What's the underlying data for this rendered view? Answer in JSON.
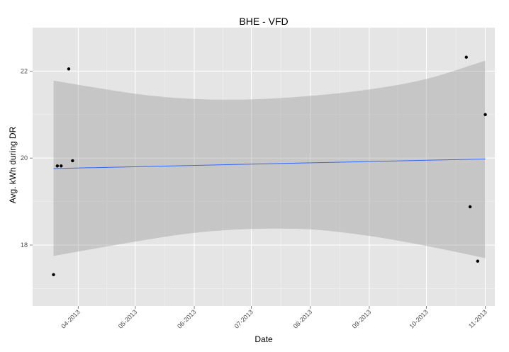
{
  "chart_data": {
    "type": "scatter",
    "title": "BHE -   VFD",
    "xlabel": "Date",
    "ylabel": "Avg. kWh during DR",
    "xlim": [
      "2013-03-08",
      "2013-11-06"
    ],
    "ylim": [
      16.6,
      23.0
    ],
    "x_ticks": [
      "04-2013",
      "05-2013",
      "06-2013",
      "07-2013",
      "08-2013",
      "09-2013",
      "10-2013",
      "11-2013"
    ],
    "x_tick_dates": [
      "2013-04-01",
      "2013-05-01",
      "2013-06-01",
      "2013-07-01",
      "2013-08-01",
      "2013-09-01",
      "2013-10-01",
      "2013-11-01"
    ],
    "y_ticks": [
      18,
      20,
      22
    ],
    "points": [
      {
        "x": "2013-03-19",
        "y": 17.32
      },
      {
        "x": "2013-03-21",
        "y": 19.82
      },
      {
        "x": "2013-03-23",
        "y": 19.82
      },
      {
        "x": "2013-03-27",
        "y": 22.05
      },
      {
        "x": "2013-03-29",
        "y": 19.94
      },
      {
        "x": "2013-10-22",
        "y": 22.32
      },
      {
        "x": "2013-10-24",
        "y": 18.88
      },
      {
        "x": "2013-10-28",
        "y": 17.63
      },
      {
        "x": "2013-11-01",
        "y": 21.0
      }
    ],
    "trend_line": {
      "color": "#3366ff",
      "start": {
        "x": "2013-03-19",
        "y": 19.76
      },
      "end": {
        "x": "2013-11-01",
        "y": 19.98
      }
    },
    "confidence_band": {
      "color": "#999999",
      "x": [
        "2013-03-19",
        "2013-05-01",
        "2013-06-01",
        "2013-07-01",
        "2013-08-01",
        "2013-09-01",
        "2013-10-01",
        "2013-11-01"
      ],
      "upper": [
        21.78,
        21.48,
        21.36,
        21.35,
        21.43,
        21.58,
        21.82,
        22.24
      ],
      "lower": [
        17.75,
        18.08,
        18.28,
        18.37,
        18.36,
        18.21,
        17.98,
        17.7
      ]
    },
    "panel_background": "#e5e5e5",
    "grid": true,
    "legend": "none"
  }
}
